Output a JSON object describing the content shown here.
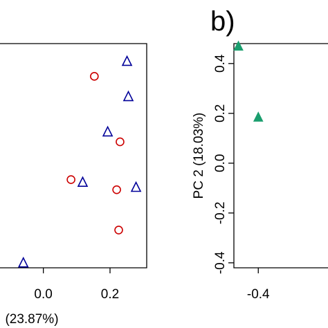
{
  "chart_data": [
    {
      "type": "scatter",
      "panel_label": "",
      "xlabel": "(23.87%)",
      "ylabel": "",
      "xlim": [
        -0.13,
        0.31
      ],
      "ylim": [
        -0.46,
        0.43
      ],
      "x_ticks": [
        {
          "value": 0.0,
          "label": "0.0"
        },
        {
          "value": 0.2,
          "label": "0.2"
        }
      ],
      "grid": false,
      "series": [
        {
          "marker": "circle",
          "color": "#cc0000",
          "points": [
            {
              "x": 0.153,
              "y": 0.3
            },
            {
              "x": 0.23,
              "y": 0.04
            },
            {
              "x": 0.083,
              "y": -0.11
            },
            {
              "x": 0.22,
              "y": -0.15
            },
            {
              "x": 0.226,
              "y": -0.31
            }
          ]
        },
        {
          "marker": "triangle-open",
          "color": "#000099",
          "points": [
            {
              "x": 0.251,
              "y": 0.36
            },
            {
              "x": 0.255,
              "y": 0.22
            },
            {
              "x": 0.193,
              "y": 0.08
            },
            {
              "x": 0.118,
              "y": -0.12
            },
            {
              "x": 0.278,
              "y": -0.14
            },
            {
              "x": -0.06,
              "y": -0.44
            }
          ]
        }
      ]
    },
    {
      "type": "scatter",
      "panel_label": "b)",
      "xlabel": "",
      "ylabel": "PC 2 (18.03%)",
      "xlim": [
        -0.47,
        -0.2
      ],
      "ylim": [
        -0.42,
        0.48
      ],
      "x_ticks": [
        {
          "value": -0.4,
          "label": "-0.4"
        }
      ],
      "y_ticks": [
        {
          "value": 0.4,
          "label": "0.4"
        },
        {
          "value": 0.2,
          "label": "0.2"
        },
        {
          "value": 0.0,
          "label": "0.0"
        },
        {
          "value": -0.2,
          "label": "-0.2"
        },
        {
          "value": -0.4,
          "label": "-0.4"
        }
      ],
      "grid": false,
      "series": [
        {
          "marker": "triangle-filled",
          "color": "#1a9e6e",
          "points": [
            {
              "x": -0.457,
              "y": 0.47
            },
            {
              "x": -0.4,
              "y": 0.185
            }
          ]
        }
      ]
    }
  ]
}
